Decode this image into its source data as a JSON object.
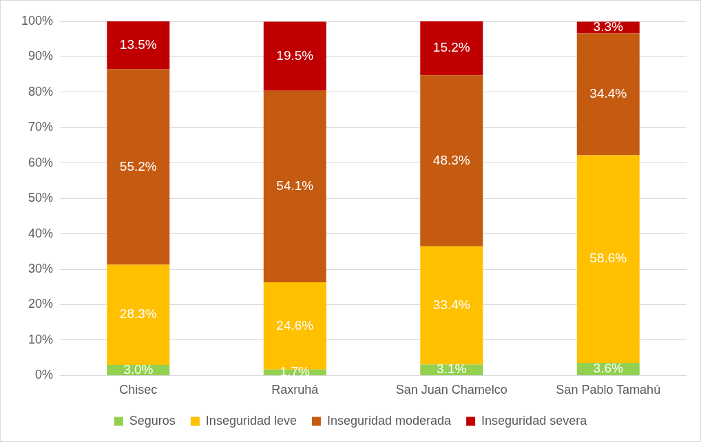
{
  "chart_data": {
    "type": "bar",
    "stacked": true,
    "categories": [
      "Chisec",
      "Raxruhá",
      "San Juan Chamelco",
      "San Pablo Tamahú"
    ],
    "series": [
      {
        "name": "Seguros",
        "color": "#92d050",
        "values": [
          3.0,
          1.7,
          3.1,
          3.6
        ],
        "value_labels": [
          "3.0%",
          "1.7%",
          "3.1%",
          "3.6%"
        ]
      },
      {
        "name": "Inseguridad leve",
        "color": "#ffc000",
        "values": [
          28.3,
          24.6,
          33.4,
          58.6
        ],
        "value_labels": [
          "28.3%",
          "24.6%",
          "33.4%",
          "58.6%"
        ]
      },
      {
        "name": "Inseguridad moderada",
        "color": "#c55a11",
        "values": [
          55.2,
          54.1,
          48.3,
          34.4
        ],
        "value_labels": [
          "55.2%",
          "54.1%",
          "48.3%",
          "34.4%"
        ]
      },
      {
        "name": "Inseguridad severa",
        "color": "#c00000",
        "values": [
          13.5,
          19.5,
          15.2,
          3.3
        ],
        "value_labels": [
          "13.5%",
          "19.5%",
          "15.2%",
          "3.3%"
        ]
      }
    ],
    "ylim": [
      0,
      100
    ],
    "yticks": [
      {
        "value": 0,
        "label": "0%"
      },
      {
        "value": 10,
        "label": "10%"
      },
      {
        "value": 20,
        "label": "20%"
      },
      {
        "value": 30,
        "label": "30%"
      },
      {
        "value": 40,
        "label": "40%"
      },
      {
        "value": 50,
        "label": "50%"
      },
      {
        "value": 60,
        "label": "60%"
      },
      {
        "value": 70,
        "label": "70%"
      },
      {
        "value": 80,
        "label": "80%"
      },
      {
        "value": 90,
        "label": "90%"
      },
      {
        "value": 100,
        "label": "100%"
      }
    ],
    "grid": "y",
    "legend": "bottom"
  }
}
